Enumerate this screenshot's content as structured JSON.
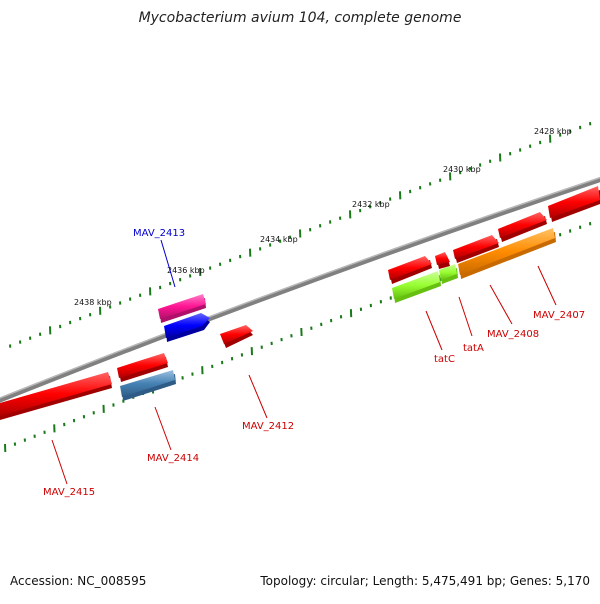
{
  "header": {
    "title": "Mycobacterium avium 104, complete genome"
  },
  "footer": {
    "accession": "Accession: NC_008595",
    "summary": "Topology: circular; Length: 5,475,491 bp; Genes: 5,170"
  },
  "scale_labels": [
    "2428 kbp",
    "2430 kbp",
    "2432 kbp",
    "2434 kbp",
    "2436 kbp",
    "2438 kbp"
  ],
  "genes": [
    {
      "name": "MAV_2407",
      "color": "#ff8c00",
      "label_color": "#cc0000"
    },
    {
      "name": "MAV_2408",
      "color": "#ff0000",
      "label_color": "#cc0000"
    },
    {
      "name": "tatA",
      "color": "#99ff33",
      "label_color": "#cc0000"
    },
    {
      "name": "tatC",
      "color": "#99ff33",
      "label_color": "#cc0000"
    },
    {
      "name": "MAV_2412",
      "color": "#ff0000",
      "label_color": "#cc0000"
    },
    {
      "name": "MAV_2413",
      "color": "#0000ff",
      "label_color": "#0000cc"
    },
    {
      "name": "MAV_2414",
      "color": "#4682b4",
      "label_color": "#cc0000"
    },
    {
      "name": "MAV_2415",
      "color": "#ff0000",
      "label_color": "#cc0000"
    }
  ],
  "colors": {
    "backbone": "#808080",
    "tick": "#1a7a1a",
    "forward_red": "#ff0000",
    "pink": "#ff1493",
    "blue": "#0000ff",
    "steel": "#4682b4",
    "lime": "#99ff33",
    "orange": "#ff8c00"
  }
}
